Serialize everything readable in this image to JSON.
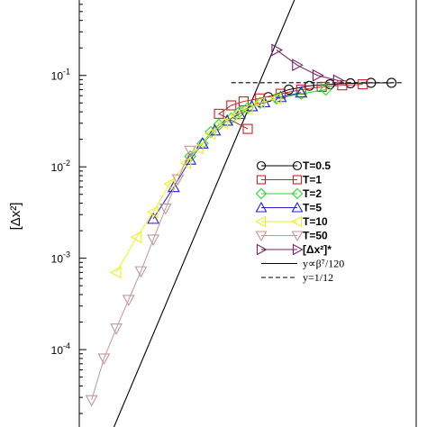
{
  "chart_data": {
    "type": "scatter",
    "title": "",
    "xlabel": "",
    "ylabel": "[Δx²]",
    "y_scale": "log",
    "ylim": [
      1.3e-05,
      0.7
    ],
    "xlim": [
      -2.4,
      1.7
    ],
    "y_ticks": [
      {
        "value": 0.1,
        "label": "10",
        "exp": "-1"
      },
      {
        "value": 0.01,
        "label": "10",
        "exp": "-2"
      },
      {
        "value": 0.001,
        "label": "10",
        "exp": "-3"
      },
      {
        "value": 0.0001,
        "label": "10",
        "exp": "-4"
      }
    ],
    "legend_position": "center-right",
    "series": [
      {
        "name": "T=0.5",
        "marker": "circle",
        "color": "#000000",
        "x": [
          -0.1,
          0.15,
          0.4,
          0.65,
          0.9,
          1.15,
          1.4
        ],
        "y": [
          0.058,
          0.07,
          0.077,
          0.08,
          0.082,
          0.083,
          0.083
        ]
      },
      {
        "name": "T=1",
        "marker": "square",
        "color": "#cc2222",
        "x": [
          -0.35,
          -0.7,
          -0.55,
          -0.4,
          -0.2,
          0.05,
          0.3,
          0.55,
          0.8,
          1.05
        ],
        "y": [
          0.026,
          0.038,
          0.047,
          0.052,
          0.056,
          0.063,
          0.07,
          0.075,
          0.078,
          0.08
        ]
      },
      {
        "name": "T=2",
        "marker": "diamond",
        "color": "#22dd22",
        "x": [
          -1.05,
          -0.9,
          -0.8,
          -0.7,
          -0.55,
          -0.45,
          -0.35,
          -0.2,
          0.0,
          0.3,
          0.6
        ],
        "y": [
          0.013,
          0.018,
          0.024,
          0.029,
          0.034,
          0.04,
          0.044,
          0.05,
          0.056,
          0.063,
          0.07
        ]
      },
      {
        "name": "T=5",
        "marker": "triangle-up",
        "color": "#2222cc",
        "x": [
          -1.5,
          -1.25,
          -1.05,
          -0.9,
          -0.75,
          -0.6,
          -0.45,
          -0.3,
          -0.15,
          0.05,
          0.3
        ],
        "y": [
          0.0027,
          0.006,
          0.012,
          0.018,
          0.025,
          0.032,
          0.038,
          0.046,
          0.051,
          0.058,
          0.065
        ]
      },
      {
        "name": "T=10",
        "marker": "triangle-left",
        "color": "#eeee22",
        "x": [
          -1.95,
          -1.7,
          -1.5,
          -1.3,
          -1.1,
          -0.95,
          -0.8,
          -0.65,
          -0.5,
          -0.35,
          -0.2,
          0.0
        ],
        "y": [
          0.0007,
          0.0017,
          0.0032,
          0.0065,
          0.011,
          0.016,
          0.023,
          0.03,
          0.037,
          0.043,
          0.05,
          0.056
        ]
      },
      {
        "name": "T=50",
        "marker": "triangle-down",
        "color": "#c09898",
        "x": [
          -2.25,
          -2.1,
          -1.95,
          -1.8,
          -1.65,
          -1.5,
          -1.35,
          -1.2,
          -1.05
        ],
        "y": [
          2.8e-05,
          8e-05,
          0.00017,
          0.00035,
          0.00072,
          0.0016,
          0.0035,
          0.0073,
          0.015
        ]
      },
      {
        "name": "[Δx²]*",
        "marker": "triangle-right",
        "color": "#7a2060",
        "x": [
          0.0,
          0.25,
          0.5,
          0.75
        ],
        "y": [
          0.19,
          0.13,
          0.1,
          0.088
        ]
      }
    ],
    "lines": [
      {
        "name": "y∝β⁷/120",
        "style": "solid",
        "color": "#000000",
        "x": [
          -2.05,
          0.3
        ],
        "y": [
          1e-05,
          1.0
        ]
      },
      {
        "name": "y=1/12",
        "style": "dashed",
        "color": "#000000",
        "x": [
          -0.55,
          1.55
        ],
        "y": [
          0.0833,
          0.0833
        ]
      }
    ]
  }
}
